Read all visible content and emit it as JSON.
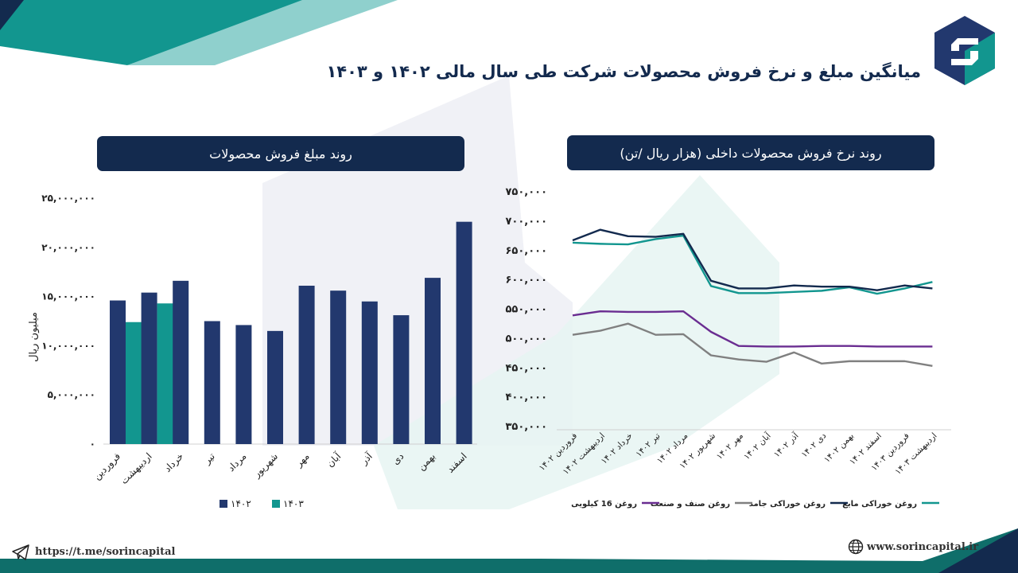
{
  "title": "میانگین مبلغ و نرخ فروش محصولات شرکت طی سال مالی ۱۴۰۲ و ۱۴۰۳",
  "footer": {
    "telegram": "https://t.me/sorincapital",
    "website": "www.sorincapital.ir"
  },
  "icons": [
    "logo-icon",
    "telegram-icon",
    "globe-icon"
  ],
  "colors": {
    "navy": "#22386e",
    "teal": "#12968f",
    "gray": "#808080",
    "purple": "#6a2d91",
    "dark": "#132a4e"
  },
  "chart_data": [
    {
      "type": "bar",
      "title": "روند مبلغ فروش محصولات",
      "ylabel": "میلیون ریال",
      "xlabel": "",
      "ylim": [
        0,
        25000000
      ],
      "y_ticks": [
        "۰",
        "۵,۰۰۰,۰۰۰",
        "۱۰,۰۰۰,۰۰۰",
        "۱۵,۰۰۰,۰۰۰",
        "۲۰,۰۰۰,۰۰۰",
        "۲۵,۰۰۰,۰۰۰"
      ],
      "categories": [
        "فروردین",
        "اردیبهشت",
        "خرداد",
        "تیر",
        "مرداد",
        "شهریور",
        "مهر",
        "آبان",
        "آذر",
        "دی",
        "بهمن",
        "اسفند"
      ],
      "series": [
        {
          "name": "۱۴۰۲",
          "color": "#22386e",
          "values": [
            14600000,
            15400000,
            16600000,
            12500000,
            12100000,
            11500000,
            16100000,
            15600000,
            14500000,
            13100000,
            16900000,
            22600000
          ]
        },
        {
          "name": "۱۴۰۳",
          "color": "#12968f",
          "values": [
            12400000,
            14300000,
            null,
            null,
            null,
            null,
            null,
            null,
            null,
            null,
            null,
            null
          ]
        }
      ],
      "legend": "bottom"
    },
    {
      "type": "line",
      "title": "روند نرخ فروش محصولات داخلی (هزار ریال /تن)",
      "ylim": [
        350000,
        750000
      ],
      "y_ticks": [
        "۳۵۰,۰۰۰",
        "۴۰۰,۰۰۰",
        "۴۵۰,۰۰۰",
        "۵۰۰,۰۰۰",
        "۵۵۰,۰۰۰",
        "۶۰۰,۰۰۰",
        "۶۵۰,۰۰۰",
        "۷۰۰,۰۰۰",
        "۷۵۰,۰۰۰"
      ],
      "categories": [
        "فروردین ۱۴۰۲",
        "اردیبهشت ۱۴۰۲",
        "خرداد ۱۴۰۲",
        "تیر ۱۴۰۲",
        "مرداد ۱۴۰۲",
        "شهریور ۱۴۰۲",
        "مهر ۱۴۰۲",
        "آبان ۱۴۰۲",
        "آذر ۱۴۰۲",
        "دی ۱۴۰۲",
        "بهمن ۱۴۰۲",
        "اسفند ۱۴۰۲",
        "فروردین ۱۴۰۳",
        "اردیبهشت ۱۴۰۳"
      ],
      "series": [
        {
          "name": "روغن خوراکی مایع",
          "color": "#12968f",
          "values": [
            662000,
            660000,
            659000,
            668000,
            674000,
            588000,
            576000,
            576000,
            578000,
            580000,
            586000,
            575000,
            584000,
            595000
          ]
        },
        {
          "name": "روغن خوراکی جامد",
          "color": "#132a4e",
          "values": [
            666000,
            684000,
            673000,
            672000,
            677000,
            597000,
            584000,
            584000,
            589000,
            587000,
            587000,
            581000,
            589000,
            584000
          ]
        },
        {
          "name": "روغن صنف و صنعت",
          "color": "#808080",
          "values": [
            505000,
            512000,
            524000,
            505000,
            506000,
            470000,
            463000,
            459000,
            475000,
            456000,
            460000,
            460000,
            460000,
            452000
          ]
        },
        {
          "name": "روغن 16 کیلویی",
          "color": "#6a2d91",
          "values": [
            538000,
            545000,
            544000,
            544000,
            545000,
            510000,
            486000,
            485000,
            485000,
            486000,
            486000,
            485000,
            485000,
            485000
          ]
        }
      ],
      "legend": "bottom"
    }
  ]
}
